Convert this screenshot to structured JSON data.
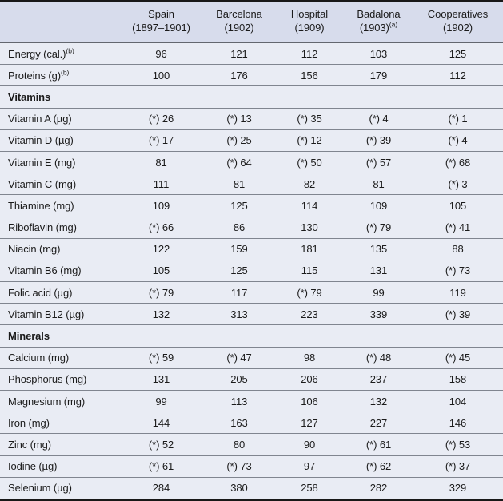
{
  "colors": {
    "header_background": "#d7dcec",
    "body_background": "#e9ecf4",
    "rule_heavy": "#181818",
    "rule_light": "#80858f",
    "text": "#1b1b1b"
  },
  "table": {
    "columns": [
      {
        "label": "Spain",
        "sub": "(1897–1901)",
        "sup": ""
      },
      {
        "label": "Barcelona",
        "sub": "(1902)",
        "sup": ""
      },
      {
        "label": "Hospital",
        "sub": "(1909)",
        "sup": ""
      },
      {
        "label": "Badalona",
        "sub": "(1903)",
        "sup": "(a)"
      },
      {
        "label": "Cooperatives",
        "sub": "(1902)",
        "sup": ""
      }
    ],
    "rows": [
      {
        "type": "data",
        "label": "Energy (cal.)",
        "label_sup": "(b)",
        "values": [
          "96",
          "121",
          "112",
          "103",
          "125"
        ]
      },
      {
        "type": "data",
        "label": "Proteins (g)",
        "label_sup": "(b)",
        "values": [
          "100",
          "176",
          "156",
          "179",
          "112"
        ]
      },
      {
        "type": "section",
        "label": "Vitamins"
      },
      {
        "type": "data",
        "label": "Vitamin A (µg)",
        "label_sup": "",
        "values": [
          "(*) 26",
          "(*) 13",
          "(*) 35",
          "(*) 4",
          "(*) 1"
        ]
      },
      {
        "type": "data",
        "label": "Vitamin D (µg)",
        "label_sup": "",
        "values": [
          "(*) 17",
          "(*) 25",
          "(*) 12",
          "(*) 39",
          "(*) 4"
        ]
      },
      {
        "type": "data",
        "label": "Vitamin E (mg)",
        "label_sup": "",
        "values": [
          "81",
          "(*) 64",
          "(*) 50",
          "(*) 57",
          "(*) 68"
        ]
      },
      {
        "type": "data",
        "label": "Vitamin C (mg)",
        "label_sup": "",
        "values": [
          "111",
          "81",
          "82",
          "81",
          "(*) 3"
        ]
      },
      {
        "type": "data",
        "label": "Thiamine (mg)",
        "label_sup": "",
        "values": [
          "109",
          "125",
          "114",
          "109",
          "105"
        ]
      },
      {
        "type": "data",
        "label": "Riboflavin (mg)",
        "label_sup": "",
        "values": [
          "(*) 66",
          "86",
          "130",
          "(*) 79",
          "(*) 41"
        ]
      },
      {
        "type": "data",
        "label": "Niacin (mg)",
        "label_sup": "",
        "values": [
          "122",
          "159",
          "181",
          "135",
          "88"
        ]
      },
      {
        "type": "data",
        "label": "Vitamin B6 (mg)",
        "label_sup": "",
        "values": [
          "105",
          "125",
          "115",
          "131",
          "(*) 73"
        ]
      },
      {
        "type": "data",
        "label": "Folic acid (µg)",
        "label_sup": "",
        "values": [
          "(*) 79",
          "117",
          "(*) 79",
          "99",
          "119"
        ]
      },
      {
        "type": "data",
        "label": "Vitamin B12 (µg)",
        "label_sup": "",
        "values": [
          "132",
          "313",
          "223",
          "339",
          "(*) 39"
        ]
      },
      {
        "type": "section",
        "label": "Minerals"
      },
      {
        "type": "data",
        "label": "Calcium (mg)",
        "label_sup": "",
        "values": [
          "(*) 59",
          "(*) 47",
          "98",
          "(*) 48",
          "(*) 45"
        ]
      },
      {
        "type": "data",
        "label": "Phosphorus (mg)",
        "label_sup": "",
        "values": [
          "131",
          "205",
          "206",
          "237",
          "158"
        ]
      },
      {
        "type": "data",
        "label": "Magnesium (mg)",
        "label_sup": "",
        "values": [
          "99",
          "113",
          "106",
          "132",
          "104"
        ]
      },
      {
        "type": "data",
        "label": "Iron (mg)",
        "label_sup": "",
        "values": [
          "144",
          "163",
          "127",
          "227",
          "146"
        ]
      },
      {
        "type": "data",
        "label": "Zinc (mg)",
        "label_sup": "",
        "values": [
          "(*) 52",
          "80",
          "90",
          "(*) 61",
          "(*) 53"
        ]
      },
      {
        "type": "data",
        "label": "Iodine (µg)",
        "label_sup": "",
        "values": [
          "(*) 61",
          "(*) 73",
          "97",
          "(*) 62",
          "(*) 37"
        ]
      },
      {
        "type": "data",
        "label": "Selenium (µg)",
        "label_sup": "",
        "values": [
          "284",
          "380",
          "258",
          "282",
          "329"
        ]
      }
    ]
  }
}
